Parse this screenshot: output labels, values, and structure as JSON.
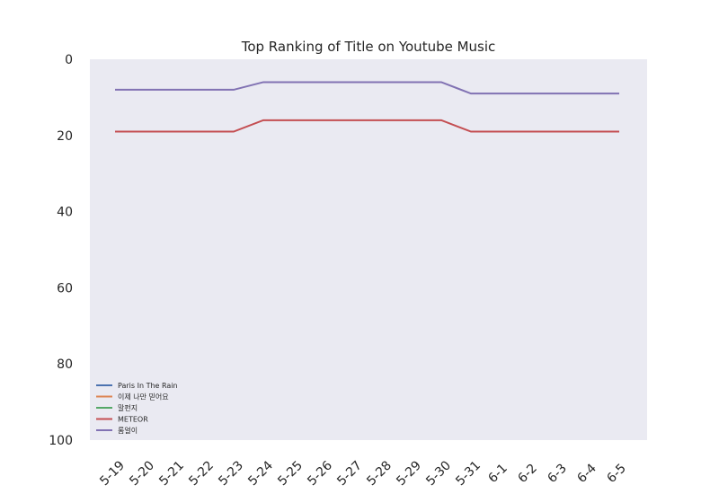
{
  "chart_data": {
    "type": "line",
    "title": "Top Ranking of Title on Youtube Music",
    "xlabel": "",
    "ylabel": "",
    "categories": [
      "5-19",
      "5-20",
      "5-21",
      "5-22",
      "5-23",
      "5-24",
      "5-25",
      "5-26",
      "5-27",
      "5-28",
      "5-29",
      "5-30",
      "5-31",
      "6-1",
      "6-2",
      "6-3",
      "6-4",
      "6-5"
    ],
    "ylim": [
      100,
      0
    ],
    "y_inverted": true,
    "yticks": [
      0,
      20,
      40,
      60,
      80,
      100
    ],
    "grid": false,
    "background": "#eaeaf2",
    "legend_position": "lower-left",
    "series": [
      {
        "name": "Paris In The Rain",
        "color": "#4c72b0",
        "values": [
          null,
          null,
          null,
          null,
          null,
          null,
          null,
          null,
          null,
          null,
          null,
          null,
          null,
          null,
          null,
          null,
          null,
          null
        ]
      },
      {
        "name": "이제 나만 믿어요",
        "color": "#dd8452",
        "values": [
          null,
          null,
          null,
          null,
          null,
          null,
          null,
          null,
          null,
          null,
          null,
          null,
          null,
          null,
          null,
          null,
          null,
          null
        ]
      },
      {
        "name": "말펀지",
        "color": "#55a868",
        "values": [
          null,
          null,
          null,
          null,
          null,
          null,
          null,
          null,
          null,
          null,
          null,
          null,
          null,
          null,
          null,
          null,
          null,
          null
        ]
      },
      {
        "name": "METEOR",
        "color": "#c44e52",
        "values": [
          19,
          19,
          19,
          19,
          19,
          16,
          16,
          16,
          16,
          16,
          16,
          16,
          19,
          19,
          19,
          19,
          19,
          19
        ]
      },
      {
        "name": "롬얼이",
        "color": "#8172b3",
        "values": [
          8,
          8,
          8,
          8,
          8,
          6,
          6,
          6,
          6,
          6,
          6,
          6,
          9,
          9,
          9,
          9,
          9,
          9
        ]
      }
    ]
  }
}
